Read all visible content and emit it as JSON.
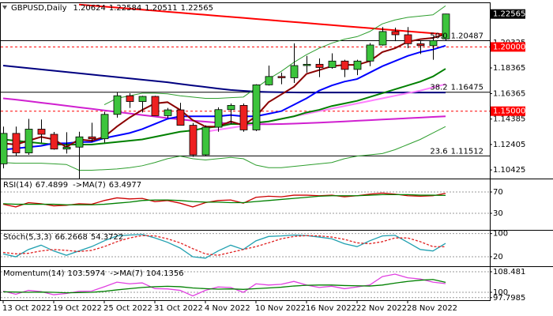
{
  "chart_data": [
    {
      "type": "candlestick",
      "title": "GBPUSD,Daily",
      "x": [
        "13 Oct 2022",
        null,
        null,
        null,
        "19 Oct 2022",
        null,
        null,
        null,
        "25 Oct 2022",
        null,
        null,
        null,
        "31 Oct 2022",
        null,
        null,
        null,
        "4 Nov 2022",
        null,
        null,
        null,
        "10 Nov 2022",
        null,
        null,
        null,
        "16 Nov 2022",
        null,
        null,
        null,
        "22 Nov 2022",
        null,
        null,
        null,
        "28 Nov 2022",
        null,
        null,
        null
      ],
      "open": [
        1.109,
        1.1327,
        1.1175,
        1.136,
        1.132,
        1.1205,
        1.122,
        1.13,
        1.1285,
        1.1475,
        1.162,
        1.1575,
        1.1615,
        1.1465,
        1.151,
        1.139,
        1.116,
        1.1375,
        1.1512,
        1.1545,
        1.1354,
        1.1705,
        1.177,
        1.176,
        1.1855,
        1.1865,
        1.184,
        1.189,
        1.1825,
        1.189,
        1.2015,
        1.212,
        1.2095,
        1.2025,
        1.201,
        1.20624
      ],
      "high": [
        1.138,
        1.138,
        1.144,
        1.1435,
        1.1338,
        1.1336,
        1.134,
        1.141,
        1.1495,
        1.1645,
        1.164,
        1.162,
        1.162,
        1.1525,
        1.1565,
        1.1408,
        1.139,
        1.153,
        1.156,
        1.156,
        1.171,
        1.1855,
        1.18,
        1.2028,
        1.193,
        1.191,
        1.195,
        1.19,
        1.19,
        1.203,
        1.2155,
        1.215,
        1.2155,
        1.2045,
        1.208,
        1.22584
      ],
      "low": [
        1.1055,
        1.115,
        1.116,
        1.1255,
        1.12,
        1.117,
        1.0924,
        1.126,
        1.1255,
        1.145,
        1.1525,
        1.149,
        1.1465,
        1.1445,
        1.139,
        1.1145,
        1.115,
        1.134,
        1.14,
        1.134,
        1.1345,
        1.17,
        1.171,
        1.172,
        1.18,
        1.1765,
        1.183,
        1.1765,
        1.178,
        1.185,
        1.201,
        1.2045,
        1.199,
        1.1945,
        1.19,
        1.20511
      ],
      "close": [
        1.1327,
        1.1175,
        1.136,
        1.132,
        1.1205,
        1.122,
        1.13,
        1.1285,
        1.1475,
        1.162,
        1.1575,
        1.1615,
        1.1465,
        1.151,
        1.139,
        1.116,
        1.1375,
        1.1512,
        1.1545,
        1.1354,
        1.1705,
        1.177,
        1.176,
        1.1855,
        1.1865,
        1.184,
        1.189,
        1.1825,
        1.189,
        1.2015,
        1.212,
        1.2095,
        1.2025,
        1.201,
        1.205,
        1.22565
      ],
      "up_color": "#3cc43c",
      "down_color": "#ee2020",
      "ylim": [
        1.09755,
        1.23408
      ],
      "yticks": [
        1.10425,
        1.12405,
        1.14385,
        1.16365,
        1.18365,
        1.20325
      ],
      "alert_levels": [
        {
          "value": 1.2,
          "label": "1.20000"
        },
        {
          "value": 1.15,
          "label": "1.15000"
        }
      ],
      "alert_color": "#ff0000",
      "fib_levels": [
        {
          "level": "50.0",
          "value": 1.20487
        },
        {
          "level": "38.2",
          "value": 1.16475
        },
        {
          "level": "23.6",
          "value": 1.11512
        }
      ],
      "lines": [
        {
          "color": "#ff0000",
          "width": 2,
          "values": [
            null,
            null,
            null,
            null,
            null,
            null,
            1.233,
            1.2322,
            1.2314,
            1.2306,
            1.2298,
            1.229,
            1.2282,
            1.2274,
            1.2266,
            1.2258,
            1.225,
            1.2242,
            1.2234,
            1.2226,
            1.2218,
            1.221,
            1.2202,
            1.2194,
            1.2186,
            1.2178,
            1.217,
            1.2162,
            1.2154,
            1.2146,
            1.2138,
            1.213,
            1.2122,
            1.2114,
            1.2106,
            1.2098
          ]
        },
        {
          "color": "#000080",
          "width": 2,
          "values": [
            1.1855,
            1.1845,
            1.1835,
            1.1825,
            1.1815,
            1.1805,
            1.1795,
            1.1785,
            1.1775,
            1.1765,
            1.1755,
            1.1745,
            1.1735,
            1.1725,
            1.1712,
            1.17,
            1.1688,
            1.1676,
            1.1665,
            1.1658,
            1.1652,
            1.1649,
            1.1647,
            1.1646,
            1.1645,
            1.1645,
            1.1645,
            1.1645,
            1.1645,
            1.1645,
            1.1645,
            1.1645,
            1.1645,
            1.1645,
            1.1645,
            1.1645
          ]
        },
        {
          "color": "#d020d0",
          "width": 2,
          "values": [
            1.16,
            1.159,
            1.1578,
            1.1566,
            1.1554,
            1.1542,
            1.153,
            1.1518,
            1.1506,
            1.1494,
            1.1482,
            1.147,
            1.1458,
            1.1446,
            1.1436,
            1.1426,
            1.1418,
            1.141,
            1.1404,
            1.14,
            1.1398,
            1.1398,
            1.14,
            1.1403,
            1.1407,
            1.1411,
            1.1415,
            1.142,
            1.1425,
            1.143,
            1.1435,
            1.144,
            1.1445,
            1.145,
            1.1455,
            1.146
          ]
        },
        {
          "color": "#ff80ff",
          "width": 2,
          "values": [
            null,
            null,
            null,
            null,
            null,
            null,
            null,
            null,
            null,
            null,
            null,
            null,
            null,
            null,
            null,
            null,
            1.134,
            1.1355,
            1.137,
            1.1385,
            1.14,
            1.142,
            1.144,
            1.146,
            1.148,
            1.15,
            1.152,
            1.154,
            1.156,
            1.158,
            1.16,
            1.162,
            1.164,
            1.166,
            1.1685,
            1.171
          ]
        },
        {
          "color": "#2e9e2e",
          "width": 1,
          "values": [
            null,
            null,
            null,
            null,
            null,
            null,
            null,
            null,
            1.155,
            1.16,
            1.162,
            1.164,
            1.164,
            1.1635,
            1.162,
            1.161,
            1.16,
            1.16,
            1.1605,
            1.161,
            1.168,
            1.175,
            1.181,
            1.188,
            1.194,
            1.199,
            1.203,
            1.206,
            1.208,
            1.212,
            1.218,
            1.221,
            1.223,
            1.224,
            1.225,
            1.232
          ]
        },
        {
          "color": "#2e9e2e",
          "width": 1,
          "values": [
            1.11,
            1.1095,
            1.1095,
            1.1095,
            1.109,
            1.1085,
            1.104,
            1.104,
            1.1045,
            1.105,
            1.106,
            1.1075,
            1.11,
            1.113,
            1.115,
            1.113,
            1.112,
            1.113,
            1.114,
            1.113,
            1.108,
            1.106,
            1.106,
            1.107,
            1.108,
            1.109,
            1.11,
            1.113,
            1.115,
            1.116,
            1.117,
            1.12,
            1.124,
            1.128,
            1.133,
            1.138
          ]
        },
        {
          "color": "#008000",
          "width": 2,
          "values": [
            1.128,
            1.127,
            1.126,
            1.125,
            1.124,
            1.124,
            1.124,
            1.124,
            1.125,
            1.126,
            1.127,
            1.128,
            1.13,
            1.132,
            1.134,
            1.135,
            1.137,
            1.138,
            1.14,
            1.14,
            1.141,
            1.142,
            1.144,
            1.146,
            1.149,
            1.151,
            1.154,
            1.156,
            1.158,
            1.161,
            1.164,
            1.167,
            1.17,
            1.173,
            1.177,
            1.183
          ]
        },
        {
          "color": "#0000ff",
          "width": 2,
          "values": [
            1.12,
            1.121,
            1.122,
            1.123,
            1.125,
            1.125,
            1.126,
            1.126,
            1.129,
            1.131,
            1.133,
            1.136,
            1.14,
            1.144,
            1.146,
            1.146,
            1.146,
            1.146,
            1.147,
            1.146,
            1.146,
            1.148,
            1.15,
            1.155,
            1.16,
            1.166,
            1.17,
            1.173,
            1.175,
            1.18,
            1.185,
            1.189,
            1.193,
            1.196,
            1.198,
            1.201
          ]
        },
        {
          "color": "#8b0000",
          "width": 2,
          "values": [
            1.125,
            1.124,
            1.127,
            1.13,
            1.128,
            1.122,
            1.128,
            1.127,
            1.13,
            1.138,
            1.145,
            1.151,
            1.156,
            1.157,
            1.151,
            1.143,
            1.138,
            1.138,
            1.142,
            1.139,
            1.146,
            1.157,
            1.163,
            1.169,
            1.179,
            1.182,
            1.185,
            1.186,
            1.186,
            1.189,
            1.196,
            1.199,
            1.204,
            1.206,
            1.207,
            1.21
          ]
        }
      ]
    },
    {
      "type": "line",
      "series": [
        {
          "name": "RSI(14)",
          "color": "#cc0000",
          "values": [
            47,
            42,
            50,
            48,
            44,
            45,
            48,
            47,
            54,
            59,
            57,
            58,
            52,
            54,
            49,
            42,
            50,
            54,
            55,
            49,
            60,
            62,
            61,
            64,
            64,
            63,
            64,
            61,
            63,
            66,
            68,
            66,
            63,
            62,
            63,
            67.4899
          ]
        },
        {
          "name": "->MA(7)",
          "color": "#008000",
          "values": [
            48,
            47,
            47,
            47,
            47,
            46,
            46,
            46,
            47,
            49,
            51,
            54,
            55,
            55,
            54,
            52,
            51,
            51,
            50,
            50,
            52,
            54,
            56,
            58,
            60,
            62,
            63,
            63,
            63,
            64,
            65,
            65,
            65,
            64,
            64,
            63.4977
          ]
        }
      ],
      "ylim": [
        0.4,
        95.2
      ],
      "yticks": [
        70,
        30
      ],
      "grid": true
    },
    {
      "type": "line",
      "series": [
        {
          "name": "Stoch(5,3,3)",
          "color": "#20a0b0",
          "values": [
            30,
            20,
            45,
            60,
            40,
            25,
            40,
            55,
            75,
            92,
            95,
            97,
            85,
            70,
            50,
            20,
            15,
            40,
            60,
            45,
            75,
            90,
            92,
            95,
            93,
            88,
            82,
            65,
            55,
            75,
            92,
            94,
            70,
            45,
            40,
            66.2668
          ]
        },
        {
          "color": "#e02020",
          "dashed": true,
          "values": [
            35,
            30,
            32,
            40,
            45,
            42,
            38,
            42,
            55,
            72,
            85,
            93,
            92,
            82,
            68,
            48,
            30,
            25,
            35,
            45,
            55,
            68,
            82,
            90,
            93,
            92,
            88,
            80,
            68,
            65,
            72,
            85,
            85,
            72,
            55,
            54.3722
          ]
        }
      ],
      "ylim": [
        -10,
        110
      ],
      "yticks": [
        100,
        20
      ],
      "grid": true
    },
    {
      "type": "line",
      "series": [
        {
          "name": "Momentum(14)",
          "color": "#e040e0",
          "values": [
            100.5,
            99.2,
            100.8,
            100.3,
            99.0,
            99.5,
            100.4,
            100.5,
            102.3,
            104.2,
            103.5,
            103.9,
            101.5,
            101.4,
            100.8,
            98.5,
            100.8,
            102.2,
            102.0,
            100.0,
            103.5,
            103.0,
            103.3,
            104.5,
            103.0,
            102.0,
            102.5,
            101.5,
            102.2,
            103.0,
            106.5,
            107.5,
            106.0,
            105.5,
            104.2,
            103.5974
          ]
        },
        {
          "name": "->MA(7)",
          "color": "#008000",
          "values": [
            100.2,
            100.1,
            100.0,
            100.1,
            100.0,
            99.8,
            99.9,
            100.0,
            100.4,
            101.0,
            101.5,
            102.0,
            102.3,
            102.5,
            102.3,
            101.8,
            101.5,
            101.3,
            101.4,
            101.2,
            101.5,
            101.8,
            102.1,
            102.6,
            102.9,
            103.0,
            103.0,
            102.8,
            102.7,
            102.6,
            103.0,
            103.8,
            104.5,
            105.0,
            105.3,
            104.1356
          ]
        }
      ],
      "ylim": [
        96.74,
        110.44
      ],
      "yticks": [
        {
          "value": 108.481,
          "label": "108.481"
        },
        100,
        {
          "value": 97.7985,
          "label": "97.7985"
        }
      ],
      "grid": true
    }
  ]
}
